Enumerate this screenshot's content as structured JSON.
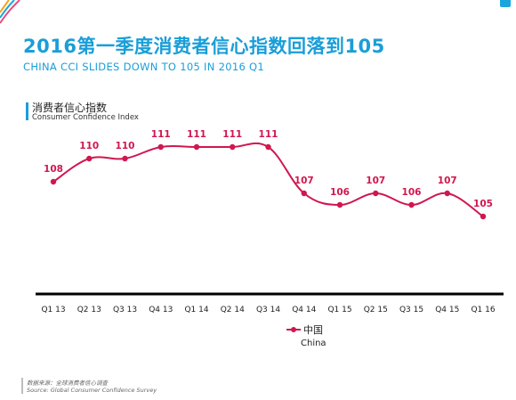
{
  "header": {
    "title_cn": "2016第一季度消费者信心指数回落到105",
    "title_en": "CHINA CCI SLIDES DOWN TO 105 IN 2016 Q1"
  },
  "section": {
    "label_cn": "消费者信心指数",
    "label_en": "Consumer Confidence Index"
  },
  "source": {
    "cn": "数据来源：全球消费者信心调查",
    "en": "Source: Global Consumer Confidence Survey"
  },
  "colors": {
    "accent": "#1a9ed8",
    "series": "#d0174f",
    "axis": "#000000"
  },
  "chart_data": {
    "type": "line",
    "title": "消费者信心指数",
    "subtitle": "Consumer Confidence Index",
    "categories": [
      "Q1 13",
      "Q2 13",
      "Q3 13",
      "Q4 13",
      "Q1 14",
      "Q2 14",
      "Q3 14",
      "Q4 14",
      "Q1 15",
      "Q2 15",
      "Q3 15",
      "Q4 15",
      "Q1 16"
    ],
    "series": [
      {
        "name": "中国",
        "name_en": "China",
        "values": [
          108,
          110,
          110,
          111,
          111,
          111,
          111,
          107,
          106,
          107,
          106,
          107,
          105
        ]
      }
    ],
    "ylim": [
      96,
      116
    ],
    "grid": false,
    "legend": "bottom-center"
  }
}
